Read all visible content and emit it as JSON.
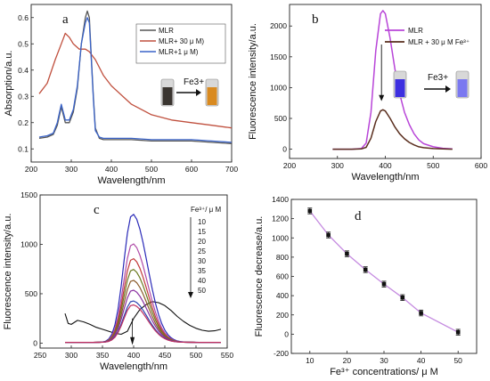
{
  "colors": {
    "a_mlr": "#555555",
    "a_mlr_fe": "#c0503e",
    "a_mlr_fe1": "#3a63c8",
    "b_mlr": "#b845d8",
    "b_mlr_fe": "#5a2e1e",
    "d_line": "#c58be0"
  },
  "icons": {
    "arrow": "arrow-right-icon",
    "vial": "vial-icon"
  },
  "chart_data": [
    {
      "panel": "a",
      "type": "line",
      "xlabel": "Wavelength/nm",
      "ylabel": "Absorption/a.u.",
      "xlim": [
        200,
        700
      ],
      "ylim": [
        0.05,
        0.65
      ],
      "xticks": [
        200,
        300,
        400,
        500,
        600,
        700
      ],
      "yticks": [
        0.1,
        0.2,
        0.3,
        0.4,
        0.5,
        0.6
      ],
      "legend_position": "top-right",
      "annotation": "Fe3+",
      "series": [
        {
          "name": "MLR",
          "color_key": "a_mlr",
          "x": [
            220,
            240,
            255,
            265,
            275,
            285,
            295,
            305,
            315,
            325,
            335,
            340,
            345,
            350,
            355,
            360,
            370,
            380,
            400,
            450,
            500,
            550,
            600,
            650,
            700
          ],
          "y": [
            0.14,
            0.145,
            0.155,
            0.19,
            0.26,
            0.2,
            0.2,
            0.24,
            0.33,
            0.5,
            0.6,
            0.625,
            0.6,
            0.45,
            0.3,
            0.18,
            0.14,
            0.135,
            0.135,
            0.135,
            0.13,
            0.13,
            0.13,
            0.125,
            0.12
          ]
        },
        {
          "name": "MLR+ 30 μ M)",
          "color_key": "a_mlr_fe",
          "x": [
            220,
            240,
            260,
            275,
            285,
            295,
            305,
            320,
            335,
            345,
            360,
            380,
            400,
            450,
            500,
            550,
            600,
            650,
            700
          ],
          "y": [
            0.31,
            0.35,
            0.44,
            0.5,
            0.54,
            0.525,
            0.5,
            0.48,
            0.48,
            0.47,
            0.44,
            0.38,
            0.34,
            0.27,
            0.23,
            0.21,
            0.2,
            0.19,
            0.18
          ]
        },
        {
          "name": "MLR+1 μ M)",
          "color_key": "a_mlr_fe1",
          "x": [
            220,
            240,
            255,
            265,
            275,
            285,
            295,
            305,
            315,
            325,
            335,
            340,
            345,
            350,
            355,
            360,
            370,
            380,
            400,
            450,
            500,
            550,
            600,
            650,
            700
          ],
          "y": [
            0.145,
            0.15,
            0.16,
            0.2,
            0.27,
            0.21,
            0.21,
            0.25,
            0.34,
            0.5,
            0.58,
            0.6,
            0.58,
            0.44,
            0.29,
            0.17,
            0.145,
            0.14,
            0.14,
            0.14,
            0.135,
            0.135,
            0.135,
            0.13,
            0.125
          ]
        }
      ]
    },
    {
      "panel": "b",
      "type": "line",
      "xlabel": "Wavelength/nm",
      "ylabel": "Fluorescence intensity/a.u.",
      "xlim": [
        200,
        600
      ],
      "ylim": [
        -150,
        2350
      ],
      "xticks": [
        200,
        300,
        400,
        500,
        600
      ],
      "yticks": [
        0,
        500,
        1000,
        1500,
        2000
      ],
      "legend_position": "top-right",
      "annotation": "Fe3+",
      "series": [
        {
          "name": "MLR",
          "color_key": "b_mlr",
          "x": [
            290,
            330,
            350,
            360,
            370,
            380,
            390,
            395,
            400,
            410,
            420,
            430,
            440,
            450,
            460,
            470,
            480,
            500,
            520,
            540
          ],
          "y": [
            0,
            0,
            10,
            100,
            600,
            1600,
            2200,
            2250,
            2200,
            1800,
            1300,
            900,
            600,
            400,
            250,
            150,
            90,
            40,
            15,
            5
          ]
        },
        {
          "name": "MLR + 30 μ M Fe³⁺",
          "color_key": "b_mlr_fe",
          "x": [
            290,
            330,
            350,
            360,
            370,
            380,
            390,
            395,
            400,
            410,
            420,
            430,
            440,
            450,
            460,
            470,
            480,
            500,
            520,
            540
          ],
          "y": [
            0,
            0,
            5,
            30,
            180,
            450,
            620,
            640,
            620,
            500,
            360,
            250,
            170,
            110,
            70,
            40,
            25,
            10,
            5,
            0
          ]
        }
      ]
    },
    {
      "panel": "c",
      "type": "line",
      "xlabel": "Wavelength/nm",
      "ylabel": "Fluorescence intensity/a.u.",
      "xlim": [
        250,
        550
      ],
      "ylim": [
        -50,
        1500
      ],
      "xticks": [
        250,
        300,
        350,
        400,
        450,
        500,
        550
      ],
      "yticks": [
        0,
        500,
        1000,
        1500
      ],
      "legend_title": "Fe³⁺/ μ M",
      "legend_position": "top-right",
      "background_curve": {
        "x": [
          290,
          295,
          300,
          310,
          320,
          330,
          340,
          350,
          360,
          370,
          380,
          390,
          400,
          410,
          420,
          430,
          440,
          450,
          460,
          470,
          480,
          490,
          500,
          510,
          520,
          530,
          540
        ],
        "y": [
          300,
          200,
          190,
          230,
          215,
          190,
          160,
          140,
          120,
          100,
          90,
          120,
          250,
          340,
          390,
          420,
          410,
          380,
          330,
          270,
          220,
          180,
          150,
          130,
          120,
          125,
          140
        ]
      },
      "concentrations": [
        "10",
        "15",
        "20",
        "25",
        "30",
        "35",
        "40",
        "50"
      ],
      "peaks": [
        1300,
        1000,
        850,
        740,
        630,
        530,
        420,
        380
      ],
      "peak_x": 398,
      "colors": [
        "#2a2ab8",
        "#b04ca8",
        "#c23a3a",
        "#6b7a20",
        "#8a5a2a",
        "#8a30a0",
        "#2e44b0",
        "#c03060"
      ]
    },
    {
      "panel": "d",
      "type": "scatter",
      "xlabel": "Fe³⁺ concentrations/ μ M",
      "ylabel": "Fluorescence decrease/a.u.",
      "xlim": [
        5,
        55
      ],
      "ylim": [
        -200,
        1400
      ],
      "xticks": [
        10,
        20,
        30,
        40,
        50
      ],
      "yticks": [
        -200,
        0,
        200,
        400,
        600,
        800,
        1000,
        1200,
        1400
      ],
      "grid": false,
      "x": [
        10,
        15,
        20,
        25,
        30,
        35,
        40,
        50
      ],
      "y": [
        1280,
        1030,
        835,
        670,
        520,
        380,
        220,
        20
      ],
      "error": [
        30,
        30,
        30,
        30,
        30,
        30,
        30,
        30
      ]
    }
  ]
}
